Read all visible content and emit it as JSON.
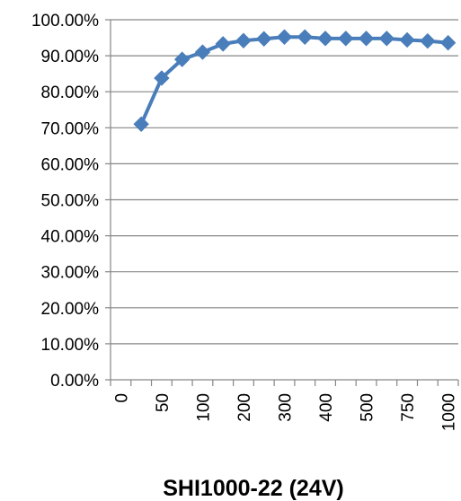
{
  "chart_data": {
    "type": "line",
    "title": "SHI1000-22 (24V)",
    "xlabel": "",
    "ylabel": "",
    "categories": [
      "0",
      "",
      "50",
      "",
      "100",
      "",
      "200",
      "",
      "300",
      "",
      "400",
      "",
      "500",
      "",
      "750",
      "",
      "1000"
    ],
    "series": [
      {
        "values": [
          null,
          71.0,
          83.8,
          89.0,
          91.0,
          93.3,
          94.2,
          94.7,
          95.2,
          95.2,
          94.8,
          94.8,
          94.8,
          94.8,
          94.4,
          94.1,
          93.6
        ]
      }
    ],
    "yticks": [
      "0.00%",
      "10.00%",
      "20.00%",
      "30.00%",
      "40.00%",
      "50.00%",
      "60.00%",
      "70.00%",
      "80.00%",
      "90.00%",
      "100.00%"
    ],
    "ylim": [
      0,
      100
    ],
    "grid": true,
    "legend": "none",
    "colors": {
      "series": "#4a7ebb",
      "grid": "#868686",
      "axis": "#868686"
    }
  }
}
